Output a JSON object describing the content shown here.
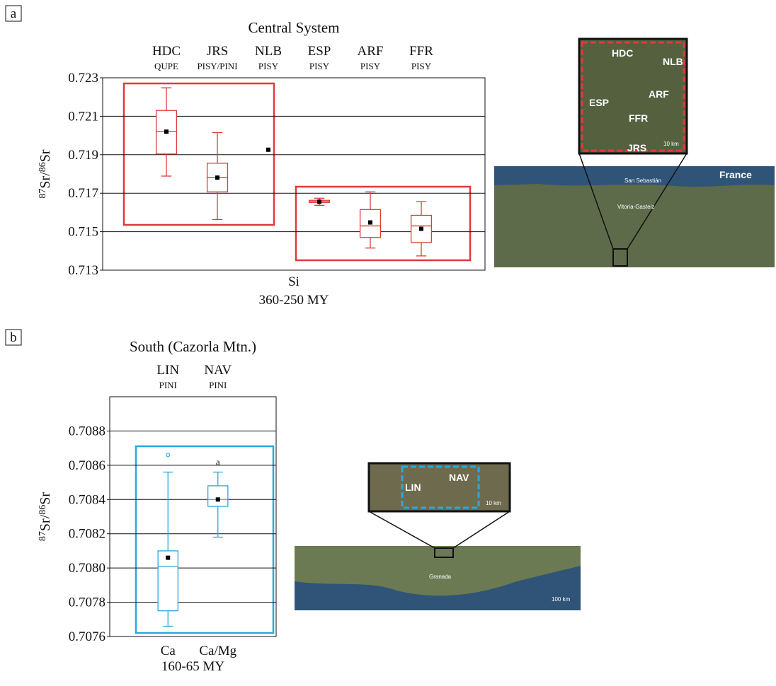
{
  "panel_labels": [
    "a",
    "b"
  ],
  "chart_data": [
    {
      "type": "box",
      "title": "Central System",
      "categories": [
        "HDC",
        "JRS",
        "NLB",
        "ESP",
        "ARF",
        "FFR"
      ],
      "category_sublabels": [
        "QUPE",
        "PISY/PINI",
        "PISY",
        "PISY",
        "PISY",
        "PISY"
      ],
      "ylabel_parts": [
        "87",
        "Sr/",
        "86",
        "Sr"
      ],
      "x_label": "Si",
      "x_sublabel": "360-250 MY",
      "color": "#e03a3a",
      "whisker_high": [
        0.72248,
        0.72015,
        null,
        0.71674,
        0.71707,
        0.71656
      ],
      "q3": [
        0.7213,
        0.71856,
        null,
        0.71663,
        0.71615,
        0.71585
      ],
      "median": [
        0.72022,
        0.71781,
        null,
        0.71656,
        0.7153,
        0.7153
      ],
      "q1": [
        0.71904,
        0.71707,
        null,
        0.71652,
        0.7147,
        0.71444
      ],
      "whisker_low": [
        0.71789,
        0.71563,
        null,
        0.71637,
        0.71415,
        0.71374
      ],
      "mean": [
        0.7202,
        0.71781,
        0.71926,
        0.71656,
        0.71548,
        0.71515
      ],
      "ylim": [
        0.713,
        0.723
      ],
      "yticks": [
        0.713,
        0.715,
        0.717,
        0.719,
        0.721,
        0.723
      ],
      "grid": true
    },
    {
      "type": "box",
      "title": "South (Cazorla Mtn.)",
      "categories": [
        "LIN",
        "NAV"
      ],
      "category_sublabels": [
        "PINI",
        "PINI"
      ],
      "ylabel_parts": [
        "87",
        "Sr/",
        "86",
        "Sr"
      ],
      "x_category_labels": [
        "Ca",
        "Ca/Mg"
      ],
      "x_sublabel": "160-65 MY",
      "color": "#2aa8de",
      "whisker_high": [
        0.70856,
        0.70856
      ],
      "q3": [
        0.7081,
        0.70848
      ],
      "median": [
        0.70801,
        0.7084
      ],
      "q1": [
        0.70775,
        0.70836
      ],
      "whisker_low": [
        0.70766,
        0.70818
      ],
      "mean": [
        0.70806,
        0.7084
      ],
      "outliers": [
        [
          0.70866
        ],
        []
      ],
      "annotations": [
        null,
        "a"
      ],
      "ylim": [
        0.7076,
        0.709
      ],
      "yticks": [
        {
          "value": 0.7076,
          "label": "0.7076"
        },
        {
          "value": 0.7078,
          "label": "0.7078"
        },
        {
          "value": 0.708,
          "label": "0.7080"
        },
        {
          "value": 0.7082,
          "label": "0.7082"
        },
        {
          "value": 0.7084,
          "label": "0.7084"
        },
        {
          "value": 0.7086,
          "label": "0.7086"
        },
        {
          "value": 0.7088,
          "label": "0.7088"
        }
      ],
      "grid": true
    }
  ],
  "maps": {
    "a": {
      "inset_labels": [
        "HDC",
        "NLB",
        "ESP",
        "ARF",
        "FFR",
        "JRS"
      ],
      "inset_scale": "10 km",
      "country": "France",
      "cities": [
        "San Sebastián",
        "Vitoria-Gasteiz"
      ]
    },
    "b": {
      "inset_labels": [
        "LIN",
        "NAV"
      ],
      "inset_scale": "10 km",
      "city": "Granada",
      "scale": "100 km"
    }
  }
}
